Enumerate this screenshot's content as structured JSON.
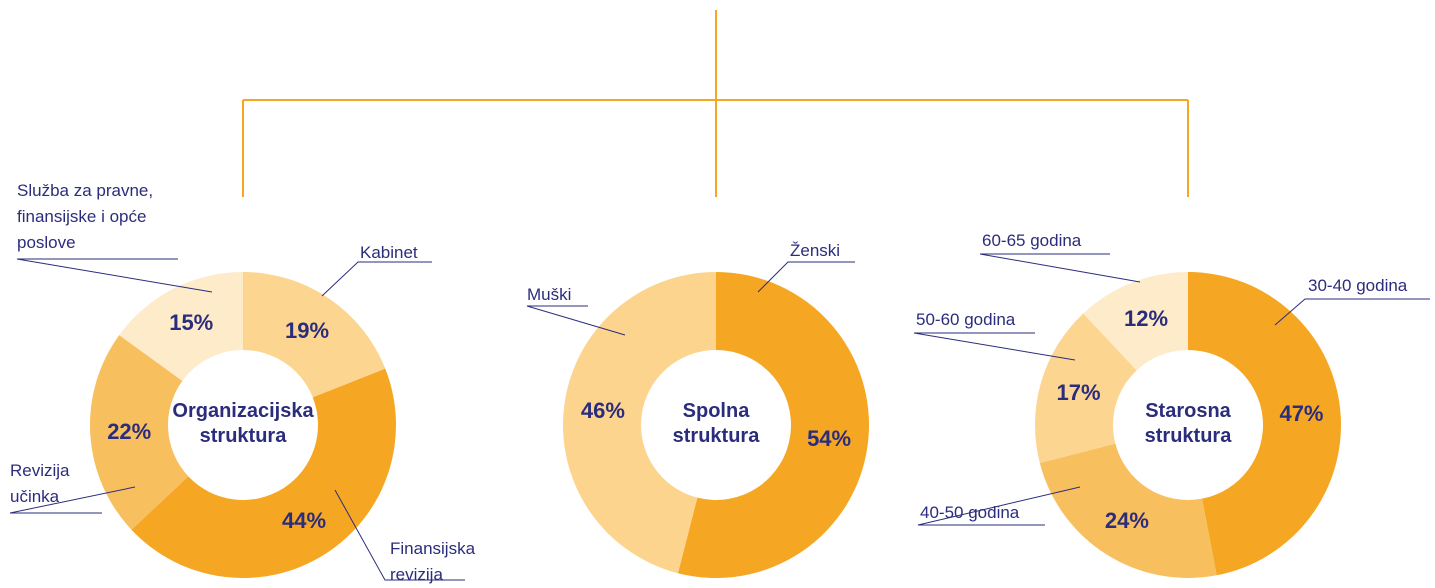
{
  "chart_data": [
    {
      "type": "pie",
      "title": "Organizacijska struktura",
      "categories": [
        "Kabinet",
        "Finansijska revizija",
        "Revizija učinka",
        "Služba za pravne, finansijske i opće poslove"
      ],
      "values": [
        19,
        44,
        22,
        15
      ],
      "value_labels": [
        "19%",
        "44%",
        "22%",
        "15%"
      ],
      "colors": [
        "#fcd690",
        "#f5a623",
        "#f8bf5e",
        "#fdebc9"
      ]
    },
    {
      "type": "pie",
      "title": "Spolna struktura",
      "categories": [
        "Ženski",
        "Muški"
      ],
      "values": [
        54,
        46
      ],
      "value_labels": [
        "54%",
        "46%"
      ],
      "colors": [
        "#f5a623",
        "#fcd48e"
      ]
    },
    {
      "type": "pie",
      "title": "Starosna struktura",
      "categories": [
        "30-40 godina",
        "40-50 godina",
        "50-60 godina",
        "60-65 godina"
      ],
      "values": [
        47,
        24,
        17,
        12
      ],
      "value_labels": [
        "47%",
        "24%",
        "17%",
        "12%"
      ],
      "colors": [
        "#f5a623",
        "#f8bf5e",
        "#fcd690",
        "#fdebc9"
      ]
    }
  ]
}
